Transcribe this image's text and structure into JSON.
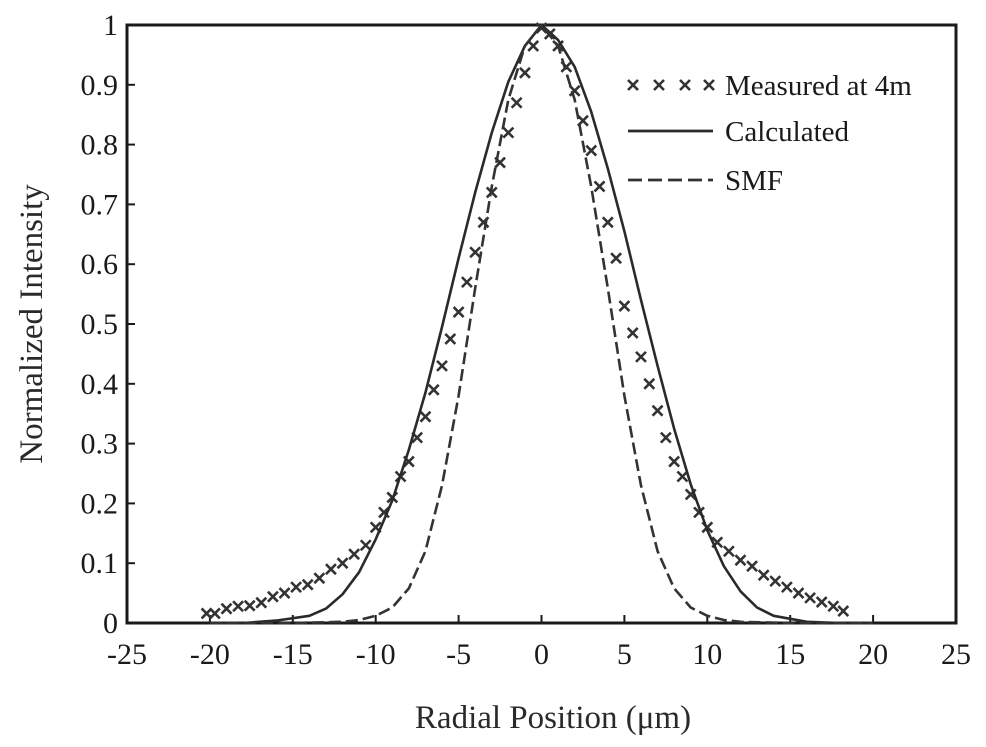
{
  "chart_data": {
    "type": "line",
    "xlabel": "Radial Position (μm)",
    "ylabel": "Normalized Intensity",
    "xlim": [
      -25,
      25
    ],
    "ylim": [
      0,
      1
    ],
    "x_ticks": [
      "-25",
      "-20",
      "-15",
      "-10",
      "-5",
      "0",
      "5",
      "10",
      "15",
      "20",
      "25"
    ],
    "y_ticks": [
      "0",
      "0.1",
      "0.2",
      "0.3",
      "0.4",
      "0.5",
      "0.6",
      "0.7",
      "0.8",
      "0.9",
      "1"
    ],
    "grid": false,
    "legend_position": "top-right",
    "series": [
      {
        "name": "Measured at 4m",
        "style": "x-markers",
        "color": "#333333",
        "x": [
          -20.2,
          -19.7,
          -19.0,
          -18.3,
          -17.6,
          -16.9,
          -16.2,
          -15.5,
          -14.8,
          -14.1,
          -13.4,
          -12.7,
          -12.0,
          -11.3,
          -10.6,
          -10.0,
          -9.5,
          -9.0,
          -8.5,
          -8.0,
          -7.5,
          -7.0,
          -6.5,
          -6.0,
          -5.5,
          -5.0,
          -4.5,
          -4.0,
          -3.5,
          -3.0,
          -2.5,
          -2.0,
          -1.5,
          -1.0,
          -0.5,
          0.0,
          0.5,
          1.0,
          1.5,
          2.0,
          2.5,
          3.0,
          3.5,
          4.0,
          4.5,
          5.0,
          5.5,
          6.0,
          6.5,
          7.0,
          7.5,
          8.0,
          8.5,
          9.0,
          9.5,
          10.0,
          10.6,
          11.3,
          12.0,
          12.7,
          13.4,
          14.1,
          14.8,
          15.5,
          16.2,
          16.9,
          17.6,
          18.2
        ],
        "y": [
          0.016,
          0.016,
          0.024,
          0.028,
          0.029,
          0.034,
          0.044,
          0.05,
          0.06,
          0.064,
          0.075,
          0.09,
          0.1,
          0.115,
          0.13,
          0.16,
          0.185,
          0.21,
          0.245,
          0.27,
          0.31,
          0.345,
          0.39,
          0.43,
          0.475,
          0.52,
          0.57,
          0.62,
          0.67,
          0.72,
          0.77,
          0.82,
          0.87,
          0.92,
          0.965,
          0.995,
          0.985,
          0.965,
          0.93,
          0.89,
          0.84,
          0.79,
          0.73,
          0.67,
          0.61,
          0.53,
          0.485,
          0.445,
          0.4,
          0.355,
          0.31,
          0.27,
          0.245,
          0.215,
          0.185,
          0.16,
          0.135,
          0.12,
          0.105,
          0.095,
          0.08,
          0.07,
          0.06,
          0.05,
          0.042,
          0.035,
          0.028,
          0.02
        ]
      },
      {
        "name": "Calculated",
        "style": "solid",
        "color": "#2a2a2a",
        "x": [
          -20,
          -18,
          -16,
          -14,
          -13,
          -12,
          -11,
          -10,
          -9,
          -8,
          -7,
          -6,
          -5,
          -4,
          -3,
          -2,
          -1,
          0,
          1,
          2,
          3,
          4,
          5,
          6,
          7,
          8,
          9,
          10,
          11,
          12,
          13,
          14,
          16,
          18,
          20
        ],
        "y": [
          0.0,
          0.0,
          0.004,
          0.012,
          0.024,
          0.048,
          0.085,
          0.14,
          0.205,
          0.29,
          0.385,
          0.495,
          0.61,
          0.72,
          0.82,
          0.905,
          0.965,
          1.0,
          0.975,
          0.93,
          0.855,
          0.76,
          0.655,
          0.54,
          0.43,
          0.325,
          0.232,
          0.155,
          0.095,
          0.053,
          0.026,
          0.012,
          0.002,
          0.0,
          0.0
        ]
      },
      {
        "name": "SMF",
        "style": "dashed",
        "color": "#333333",
        "x": [
          -20,
          -15,
          -12,
          -11,
          -10,
          -9,
          -8,
          -7,
          -6,
          -5,
          -4,
          -3,
          -2,
          -1,
          0,
          1,
          2,
          3,
          4,
          5,
          6,
          7,
          8,
          9,
          10,
          11,
          12,
          15,
          20
        ],
        "y": [
          0.0,
          0.0,
          0.002,
          0.005,
          0.012,
          0.026,
          0.058,
          0.12,
          0.23,
          0.38,
          0.56,
          0.73,
          0.875,
          0.965,
          1.0,
          0.965,
          0.875,
          0.73,
          0.56,
          0.38,
          0.23,
          0.12,
          0.058,
          0.026,
          0.012,
          0.005,
          0.002,
          0.0,
          0.0
        ]
      }
    ]
  }
}
